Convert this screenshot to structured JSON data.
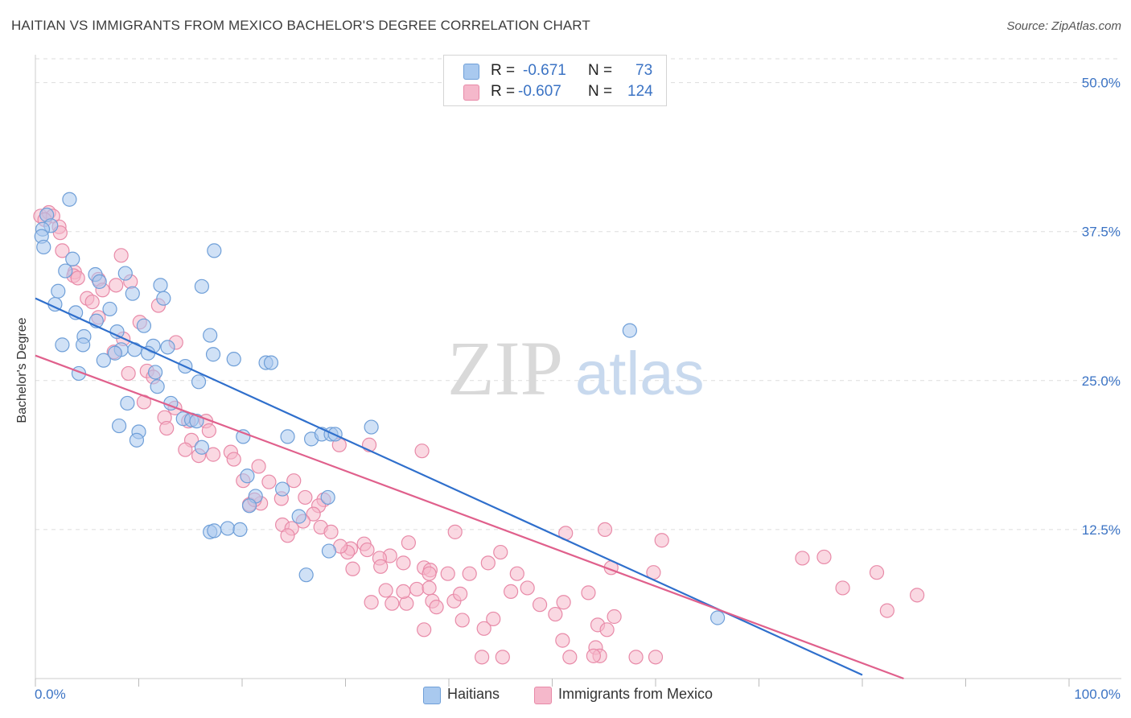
{
  "header": {
    "title": "HAITIAN VS IMMIGRANTS FROM MEXICO BACHELOR'S DEGREE CORRELATION CHART",
    "source": "Source: ZipAtlas.com"
  },
  "watermark": {
    "zip": "ZIP",
    "atlas": "atlas"
  },
  "legend": {
    "rows": [
      {
        "r_label": "R =",
        "r_value": "-0.671",
        "n_label": "N =",
        "n_value": "73",
        "color": "#a9c9ef"
      },
      {
        "r_label": "R =",
        "r_value": "-0.607",
        "n_label": "N =",
        "n_value": "124",
        "color": "#f5b8cb"
      }
    ]
  },
  "bottom_legend": [
    {
      "label": "Haitians",
      "color": "#a9c9ef"
    },
    {
      "label": "Immigrants from Mexico",
      "color": "#f5b8cb"
    }
  ],
  "colors": {
    "blue_fill": "#a9c9ef",
    "blue_stroke": "#6f9fd8",
    "blue_line": "#2f6fcc",
    "pink_fill": "#f5b8cb",
    "pink_stroke": "#e88aa8",
    "pink_line": "#e0608c",
    "tick_text": "#3b73c4",
    "grid": "#dddddd"
  },
  "chart_data": {
    "type": "scatter",
    "title": "HAITIAN VS IMMIGRANTS FROM MEXICO BACHELOR'S DEGREE CORRELATION CHART",
    "xlabel": "",
    "ylabel": "Bachelor's Degree",
    "xlim": [
      0,
      100
    ],
    "ylim": [
      0,
      52
    ],
    "x_tick_labels": [
      "0.0%",
      "100.0%"
    ],
    "y_ticks": [
      12.5,
      25.0,
      37.5,
      50.0
    ],
    "y_tick_labels": [
      "12.5%",
      "25.0%",
      "37.5%",
      "50.0%"
    ],
    "grid": true,
    "legend_position": "top-center",
    "series": [
      {
        "name": "Haitians",
        "color": "#a9c9ef",
        "trend": {
          "x": [
            0,
            80
          ],
          "y": [
            31.9,
            0.3
          ]
        },
        "points": [
          [
            3.3,
            40.2
          ],
          [
            1.1,
            38.9
          ],
          [
            1.5,
            38.0
          ],
          [
            0.7,
            37.7
          ],
          [
            0.6,
            37.1
          ],
          [
            0.8,
            36.2
          ],
          [
            3.6,
            35.2
          ],
          [
            17.3,
            35.9
          ],
          [
            2.9,
            34.2
          ],
          [
            5.8,
            33.9
          ],
          [
            6.2,
            33.3
          ],
          [
            8.7,
            34.0
          ],
          [
            12.1,
            33.0
          ],
          [
            16.1,
            32.9
          ],
          [
            2.2,
            32.5
          ],
          [
            9.4,
            32.3
          ],
          [
            12.4,
            31.9
          ],
          [
            1.9,
            31.4
          ],
          [
            7.2,
            31.0
          ],
          [
            3.9,
            30.7
          ],
          [
            5.9,
            30.0
          ],
          [
            10.5,
            29.6
          ],
          [
            7.9,
            29.1
          ],
          [
            16.9,
            28.8
          ],
          [
            4.7,
            28.7
          ],
          [
            2.6,
            28.0
          ],
          [
            4.6,
            28.0
          ],
          [
            11.4,
            27.9
          ],
          [
            8.3,
            27.6
          ],
          [
            9.6,
            27.6
          ],
          [
            12.8,
            27.8
          ],
          [
            7.7,
            27.3
          ],
          [
            17.2,
            27.2
          ],
          [
            10.9,
            27.3
          ],
          [
            6.6,
            26.7
          ],
          [
            19.2,
            26.8
          ],
          [
            22.3,
            26.5
          ],
          [
            22.8,
            26.5
          ],
          [
            14.5,
            26.2
          ],
          [
            11.6,
            25.7
          ],
          [
            4.2,
            25.6
          ],
          [
            15.8,
            24.9
          ],
          [
            11.8,
            24.5
          ],
          [
            8.9,
            23.1
          ],
          [
            13.1,
            23.1
          ],
          [
            14.3,
            21.8
          ],
          [
            15.1,
            21.7
          ],
          [
            15.6,
            21.6
          ],
          [
            8.1,
            21.2
          ],
          [
            32.5,
            21.1
          ],
          [
            10.0,
            20.7
          ],
          [
            9.8,
            20.0
          ],
          [
            26.7,
            20.1
          ],
          [
            27.7,
            20.5
          ],
          [
            28.6,
            20.5
          ],
          [
            29.0,
            20.5
          ],
          [
            20.1,
            20.3
          ],
          [
            24.4,
            20.3
          ],
          [
            16.1,
            19.4
          ],
          [
            20.5,
            17.0
          ],
          [
            23.9,
            15.9
          ],
          [
            21.3,
            15.3
          ],
          [
            18.6,
            12.6
          ],
          [
            19.8,
            12.5
          ],
          [
            28.3,
            15.2
          ],
          [
            25.5,
            13.6
          ],
          [
            16.9,
            12.3
          ],
          [
            17.3,
            12.4
          ],
          [
            28.4,
            10.7
          ],
          [
            26.2,
            8.7
          ],
          [
            20.7,
            14.5
          ],
          [
            57.5,
            29.2
          ],
          [
            66.0,
            5.1
          ]
        ]
      },
      {
        "name": "Immigrants from Mexico",
        "color": "#f5b8cb",
        "trend": {
          "x": [
            0,
            84
          ],
          "y": [
            27.1,
            0.0
          ]
        },
        "points": [
          [
            0.5,
            38.8
          ],
          [
            1.3,
            39.1
          ],
          [
            1.7,
            38.8
          ],
          [
            0.9,
            38.5
          ],
          [
            2.3,
            37.9
          ],
          [
            2.4,
            37.4
          ],
          [
            2.6,
            35.9
          ],
          [
            8.3,
            35.5
          ],
          [
            3.8,
            34.1
          ],
          [
            3.7,
            33.8
          ],
          [
            4.1,
            33.6
          ],
          [
            6.1,
            33.5
          ],
          [
            7.8,
            33.0
          ],
          [
            9.2,
            33.3
          ],
          [
            6.5,
            32.6
          ],
          [
            5.0,
            31.9
          ],
          [
            5.5,
            31.6
          ],
          [
            11.9,
            31.3
          ],
          [
            6.1,
            30.3
          ],
          [
            10.1,
            29.9
          ],
          [
            8.5,
            28.5
          ],
          [
            13.6,
            28.2
          ],
          [
            7.6,
            27.4
          ],
          [
            10.8,
            25.8
          ],
          [
            9.0,
            25.6
          ],
          [
            11.4,
            25.3
          ],
          [
            10.5,
            23.2
          ],
          [
            13.5,
            22.7
          ],
          [
            12.5,
            21.9
          ],
          [
            14.8,
            21.6
          ],
          [
            16.5,
            21.6
          ],
          [
            12.7,
            21.0
          ],
          [
            16.8,
            20.8
          ],
          [
            15.1,
            20.0
          ],
          [
            14.5,
            19.2
          ],
          [
            15.8,
            18.7
          ],
          [
            18.9,
            19.0
          ],
          [
            17.2,
            18.8
          ],
          [
            19.2,
            18.4
          ],
          [
            21.6,
            17.8
          ],
          [
            20.1,
            16.6
          ],
          [
            22.6,
            16.5
          ],
          [
            25.0,
            16.6
          ],
          [
            32.3,
            19.6
          ],
          [
            37.4,
            19.1
          ],
          [
            29.4,
            19.6
          ],
          [
            26.1,
            15.2
          ],
          [
            23.8,
            15.1
          ],
          [
            27.9,
            15.0
          ],
          [
            21.8,
            14.7
          ],
          [
            20.7,
            14.6
          ],
          [
            27.4,
            14.5
          ],
          [
            26.9,
            13.8
          ],
          [
            21.2,
            15.0
          ],
          [
            25.9,
            13.2
          ],
          [
            27.6,
            12.7
          ],
          [
            23.9,
            12.9
          ],
          [
            24.8,
            12.6
          ],
          [
            24.4,
            12.0
          ],
          [
            28.6,
            12.3
          ],
          [
            31.8,
            11.3
          ],
          [
            36.1,
            11.4
          ],
          [
            40.6,
            12.3
          ],
          [
            30.5,
            10.9
          ],
          [
            30.2,
            10.6
          ],
          [
            29.5,
            11.1
          ],
          [
            32.1,
            10.8
          ],
          [
            34.3,
            10.3
          ],
          [
            33.3,
            10.1
          ],
          [
            33.4,
            9.4
          ],
          [
            35.6,
            9.7
          ],
          [
            37.6,
            9.3
          ],
          [
            38.2,
            9.1
          ],
          [
            30.7,
            9.2
          ],
          [
            38.1,
            8.8
          ],
          [
            39.9,
            8.8
          ],
          [
            42.0,
            8.8
          ],
          [
            43.8,
            9.7
          ],
          [
            46.6,
            8.8
          ],
          [
            32.5,
            6.4
          ],
          [
            34.5,
            6.3
          ],
          [
            35.9,
            6.3
          ],
          [
            38.4,
            6.5
          ],
          [
            38.8,
            6.0
          ],
          [
            40.5,
            6.5
          ],
          [
            41.1,
            7.1
          ],
          [
            35.6,
            7.3
          ],
          [
            36.9,
            7.5
          ],
          [
            38.1,
            7.6
          ],
          [
            33.9,
            7.4
          ],
          [
            37.6,
            4.1
          ],
          [
            41.3,
            4.9
          ],
          [
            47.6,
            7.6
          ],
          [
            51.1,
            6.4
          ],
          [
            53.5,
            7.2
          ],
          [
            48.8,
            6.2
          ],
          [
            54.4,
            4.5
          ],
          [
            56.0,
            5.2
          ],
          [
            55.3,
            4.1
          ],
          [
            59.8,
            8.9
          ],
          [
            60.6,
            11.6
          ],
          [
            55.1,
            12.5
          ],
          [
            51.3,
            12.2
          ],
          [
            45.0,
            10.6
          ],
          [
            55.7,
            9.3
          ],
          [
            46.0,
            7.3
          ],
          [
            50.3,
            5.4
          ],
          [
            44.3,
            5.0
          ],
          [
            43.4,
            4.2
          ],
          [
            43.2,
            1.8
          ],
          [
            45.2,
            1.8
          ],
          [
            51.0,
            3.2
          ],
          [
            51.7,
            1.8
          ],
          [
            54.2,
            2.6
          ],
          [
            54.6,
            1.9
          ],
          [
            58.1,
            1.8
          ],
          [
            54.0,
            1.9
          ],
          [
            60.0,
            1.8
          ],
          [
            74.2,
            10.1
          ],
          [
            76.3,
            10.2
          ],
          [
            78.1,
            7.6
          ],
          [
            81.4,
            8.9
          ],
          [
            82.4,
            5.7
          ],
          [
            85.3,
            7.0
          ]
        ]
      }
    ]
  }
}
